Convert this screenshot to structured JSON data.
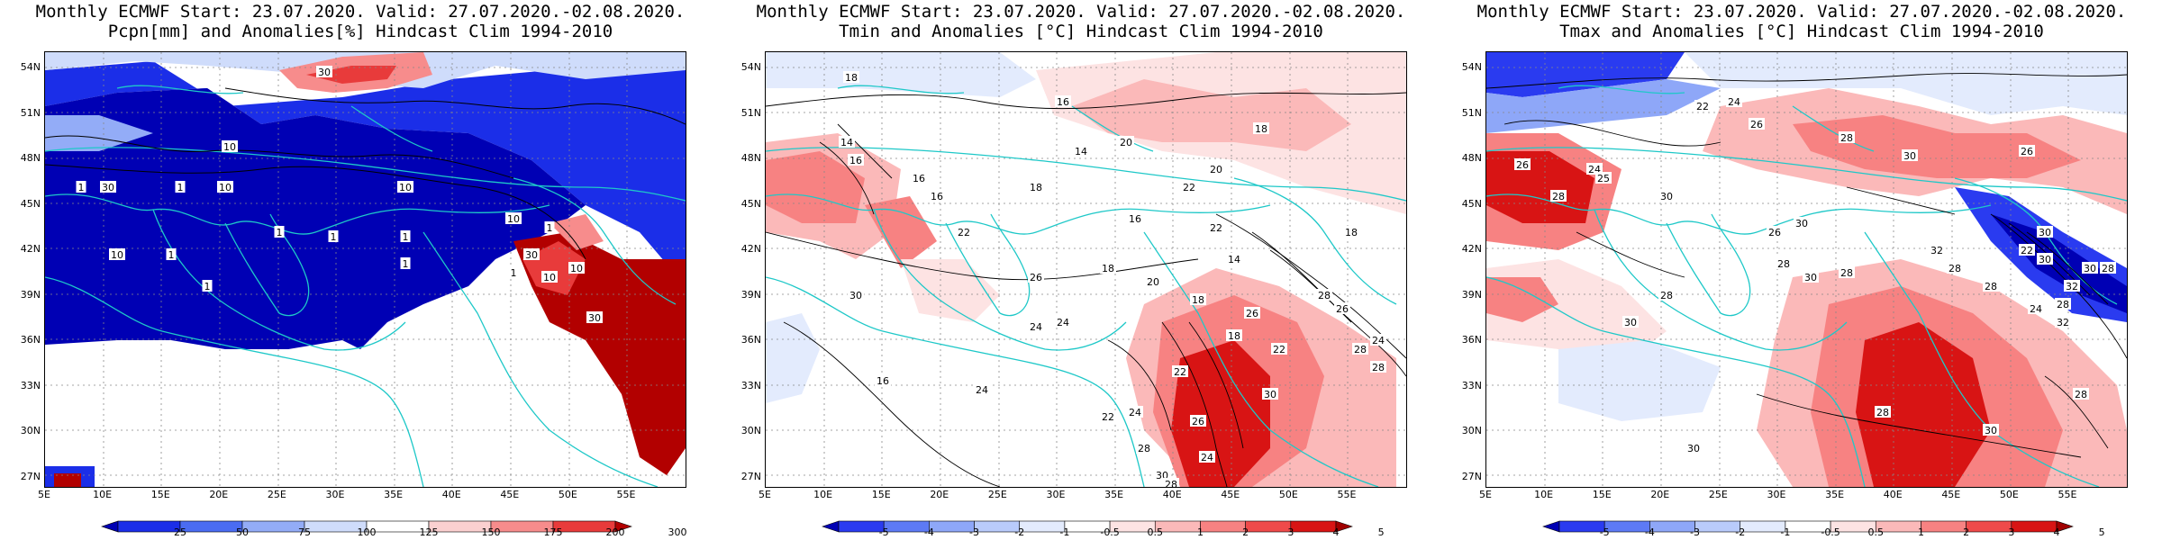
{
  "panels": [
    {
      "id": "pcpn",
      "title_line1": "Monthly ECMWF Start: 23.07.2020. Valid: 27.07.2020.-02.08.2020.",
      "title_line2": "Pcpn[mm] and Anomalies[%] Hindcast Clim 1994-2010",
      "colorbar_labels": [
        "25",
        "50",
        "75",
        "100",
        "125",
        "150",
        "175",
        "200",
        "300"
      ],
      "colorbar_colors": [
        "#0000b4",
        "#1b2ee8",
        "#4a6cf2",
        "#93acf7",
        "#cfdcfb",
        "#ffffff",
        "#fbd0d0",
        "#f78c8c",
        "#e83b3b",
        "#b20000"
      ],
      "contour_labels": [
        "30",
        "10",
        "10",
        "30",
        "1",
        "1",
        "10",
        "10",
        "1",
        "1",
        "1",
        "1",
        "1",
        "30",
        "10",
        "1",
        "10",
        "1",
        "1",
        "10",
        "30"
      ]
    },
    {
      "id": "tmin",
      "title_line1": "Monthly ECMWF Start: 23.07.2020. Valid: 27.07.2020.-02.08.2020.",
      "title_line2": "Tmin and Anomalies [°C] Hindcast Clim 1994-2010",
      "colorbar_labels": [
        "-5",
        "-4",
        "-3",
        "-2",
        "-1",
        "-0.5",
        "0.5",
        "1",
        "2",
        "3",
        "4",
        "5"
      ],
      "colorbar_colors": [
        "#0000b4",
        "#2a3bf0",
        "#5d7af5",
        "#8ea7f8",
        "#b9cbfb",
        "#e3ebfd",
        "#ffffff",
        "#fde3e3",
        "#fbb9b9",
        "#f78282",
        "#ef4a4a",
        "#d81414",
        "#a00000"
      ],
      "contour_labels": [
        "18",
        "16",
        "14",
        "16",
        "16",
        "20",
        "18",
        "20",
        "14",
        "18",
        "16",
        "22",
        "22",
        "20",
        "18",
        "16",
        "18",
        "14",
        "24",
        "22",
        "16",
        "18",
        "24",
        "22",
        "26",
        "30",
        "28",
        "24",
        "22",
        "26",
        "24",
        "30",
        "28",
        "28",
        "26",
        "30",
        "28",
        "28",
        "26",
        "24",
        "18",
        "22",
        "24"
      ]
    },
    {
      "id": "tmax",
      "title_line1": "Monthly ECMWF Start: 23.07.2020. Valid: 27.07.2020.-02.08.2020.",
      "title_line2": "Tmax and Anomalies [°C] Hindcast Clim 1994-2010",
      "colorbar_labels": [
        "-5",
        "-4",
        "-3",
        "-2",
        "-1",
        "-0.5",
        "0.5",
        "1",
        "2",
        "3",
        "4",
        "5"
      ],
      "colorbar_colors": [
        "#0000b4",
        "#2a3bf0",
        "#5d7af5",
        "#8ea7f8",
        "#b9cbfb",
        "#e3ebfd",
        "#ffffff",
        "#fde3e3",
        "#fbb9b9",
        "#f78282",
        "#ef4a4a",
        "#d81414",
        "#a00000"
      ],
      "contour_labels": [
        "22",
        "24",
        "26",
        "26",
        "30",
        "28",
        "26",
        "24",
        "28",
        "30",
        "25",
        "22",
        "30",
        "32",
        "28",
        "30",
        "28",
        "26",
        "28",
        "24",
        "28",
        "30",
        "32",
        "28",
        "30",
        "32",
        "28",
        "30",
        "28",
        "30",
        "30",
        "28",
        "28",
        "30"
      ]
    }
  ],
  "lat_labels": [
    "54N",
    "51N",
    "48N",
    "45N",
    "42N",
    "39N",
    "36N",
    "33N",
    "30N",
    "27N"
  ],
  "lon_labels": [
    "5E",
    "10E",
    "15E",
    "20E",
    "25E",
    "30E",
    "35E",
    "40E",
    "45E",
    "50E",
    "55E"
  ],
  "colors": {
    "coastline": "#1ec8c8",
    "contour": "#000000",
    "gridline": "#888888"
  }
}
